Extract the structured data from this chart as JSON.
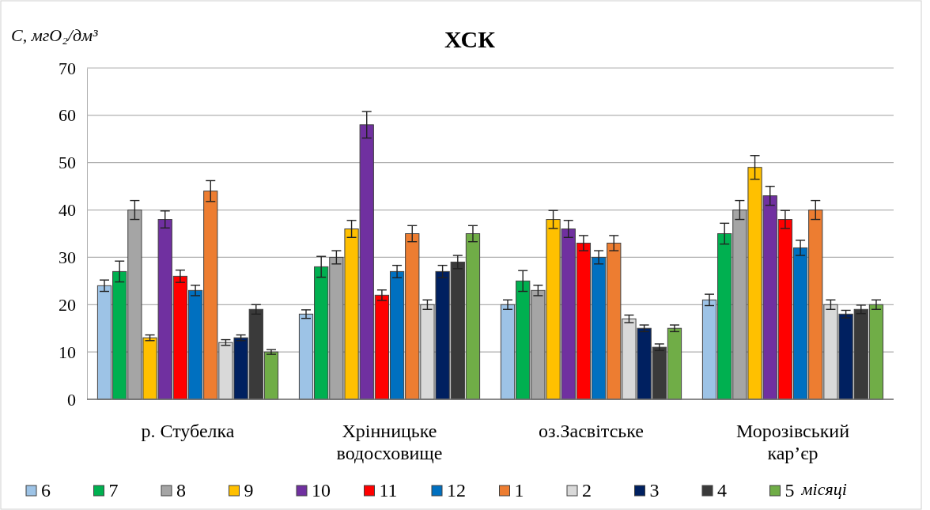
{
  "chart_data": {
    "type": "bar",
    "title": "ХСК",
    "ylabel": "C, мгO₂/дм³",
    "legend_title": "місяці",
    "categories": [
      "р. Стубелка",
      "Хрінницьке водосховище",
      "оз.Засвітське",
      "Морозівський кар’єр"
    ],
    "ylim": [
      0,
      70
    ],
    "yticks": [
      0,
      10,
      20,
      30,
      40,
      50,
      60,
      70
    ],
    "grid": "y",
    "legend": "bottom",
    "series": [
      {
        "name": "6",
        "color": "#9dc3e6",
        "values": [
          24,
          18,
          20,
          21
        ],
        "errors": [
          1.2,
          0.9,
          1,
          1.2
        ]
      },
      {
        "name": "7",
        "color": "#00b050",
        "values": [
          27,
          28,
          25,
          35
        ],
        "errors": [
          2.2,
          2.2,
          2.2,
          2.2
        ]
      },
      {
        "name": "8",
        "color": "#a5a5a5",
        "values": [
          40,
          30,
          23,
          40
        ],
        "errors": [
          2,
          1.4,
          1.1,
          2
        ]
      },
      {
        "name": "9",
        "color": "#ffc000",
        "values": [
          13,
          36,
          38,
          49
        ],
        "errors": [
          0.6,
          1.8,
          1.9,
          2.5
        ]
      },
      {
        "name": "10",
        "color": "#7030a0",
        "values": [
          38,
          58,
          36,
          43
        ],
        "errors": [
          1.8,
          2.8,
          1.8,
          2
        ]
      },
      {
        "name": "11",
        "color": "#ff0000",
        "values": [
          26,
          22,
          33,
          38
        ],
        "errors": [
          1.3,
          1.1,
          1.6,
          1.9
        ]
      },
      {
        "name": "12",
        "color": "#0070c0",
        "values": [
          23,
          27,
          30,
          32
        ],
        "errors": [
          1.1,
          1.3,
          1.4,
          1.6
        ]
      },
      {
        "name": "1",
        "color": "#ed7d31",
        "values": [
          44,
          35,
          33,
          40
        ],
        "errors": [
          2.2,
          1.7,
          1.6,
          2
        ]
      },
      {
        "name": "2",
        "color": "#d9d9d9",
        "values": [
          12,
          20,
          17,
          20
        ],
        "errors": [
          0.6,
          1,
          0.8,
          1
        ]
      },
      {
        "name": "3",
        "color": "#002060",
        "values": [
          13,
          27,
          15,
          18
        ],
        "errors": [
          0.6,
          1.3,
          0.7,
          0.8
        ]
      },
      {
        "name": "4",
        "color": "#3a3a3a",
        "values": [
          19,
          29,
          11,
          19
        ],
        "errors": [
          1,
          1.4,
          0.7,
          0.9
        ]
      },
      {
        "name": "5",
        "color": "#70ad47",
        "values": [
          10,
          35,
          15,
          20
        ],
        "errors": [
          0.5,
          1.7,
          0.7,
          1
        ]
      }
    ]
  }
}
